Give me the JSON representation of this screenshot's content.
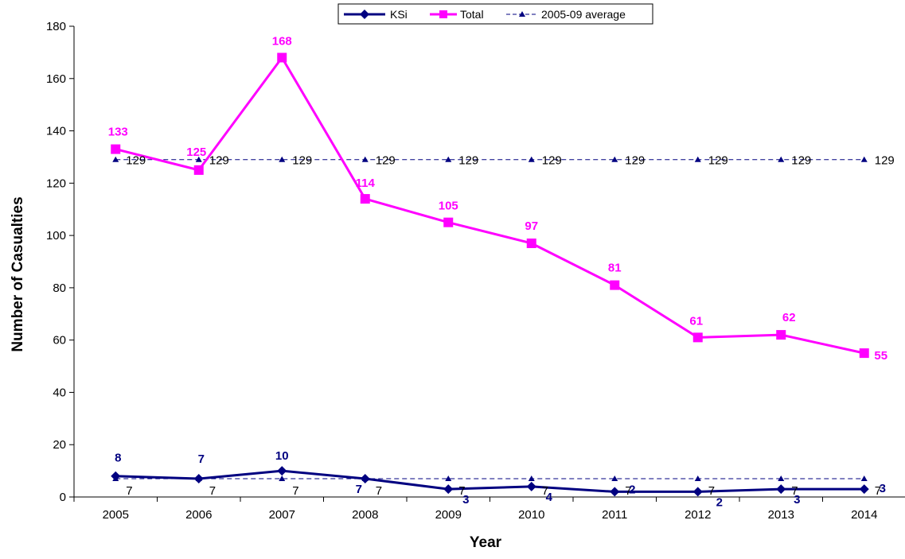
{
  "chart_data": {
    "type": "line",
    "xlabel": "Year",
    "ylabel": "Number of Casualties",
    "ylim": [
      0,
      180
    ],
    "yticks": [
      0,
      20,
      40,
      60,
      80,
      100,
      120,
      140,
      160,
      180
    ],
    "categories": [
      "2005",
      "2006",
      "2007",
      "2008",
      "2009",
      "2010",
      "2011",
      "2012",
      "2013",
      "2014"
    ],
    "legend_position": "top-center",
    "grid": false,
    "series": [
      {
        "name": "KSi",
        "color": "#000080",
        "marker": "diamond",
        "dash": "solid",
        "values": [
          8,
          7,
          10,
          7,
          3,
          4,
          2,
          2,
          3,
          3
        ]
      },
      {
        "name": "Total",
        "color": "#ff00ff",
        "marker": "square",
        "dash": "solid",
        "values": [
          133,
          125,
          168,
          114,
          105,
          97,
          81,
          61,
          62,
          55
        ]
      },
      {
        "name": "2005-09 average",
        "color": "#000080",
        "marker": "triangle",
        "dash": "dashed",
        "values": [
          129,
          129,
          129,
          129,
          129,
          129,
          129,
          129,
          129,
          129
        ]
      }
    ],
    "ksi_average_line": {
      "color": "#000080",
      "marker": "triangle",
      "dash": "dashed",
      "values": [
        7,
        7,
        7,
        7,
        7,
        7,
        7,
        7,
        7,
        7
      ]
    }
  }
}
